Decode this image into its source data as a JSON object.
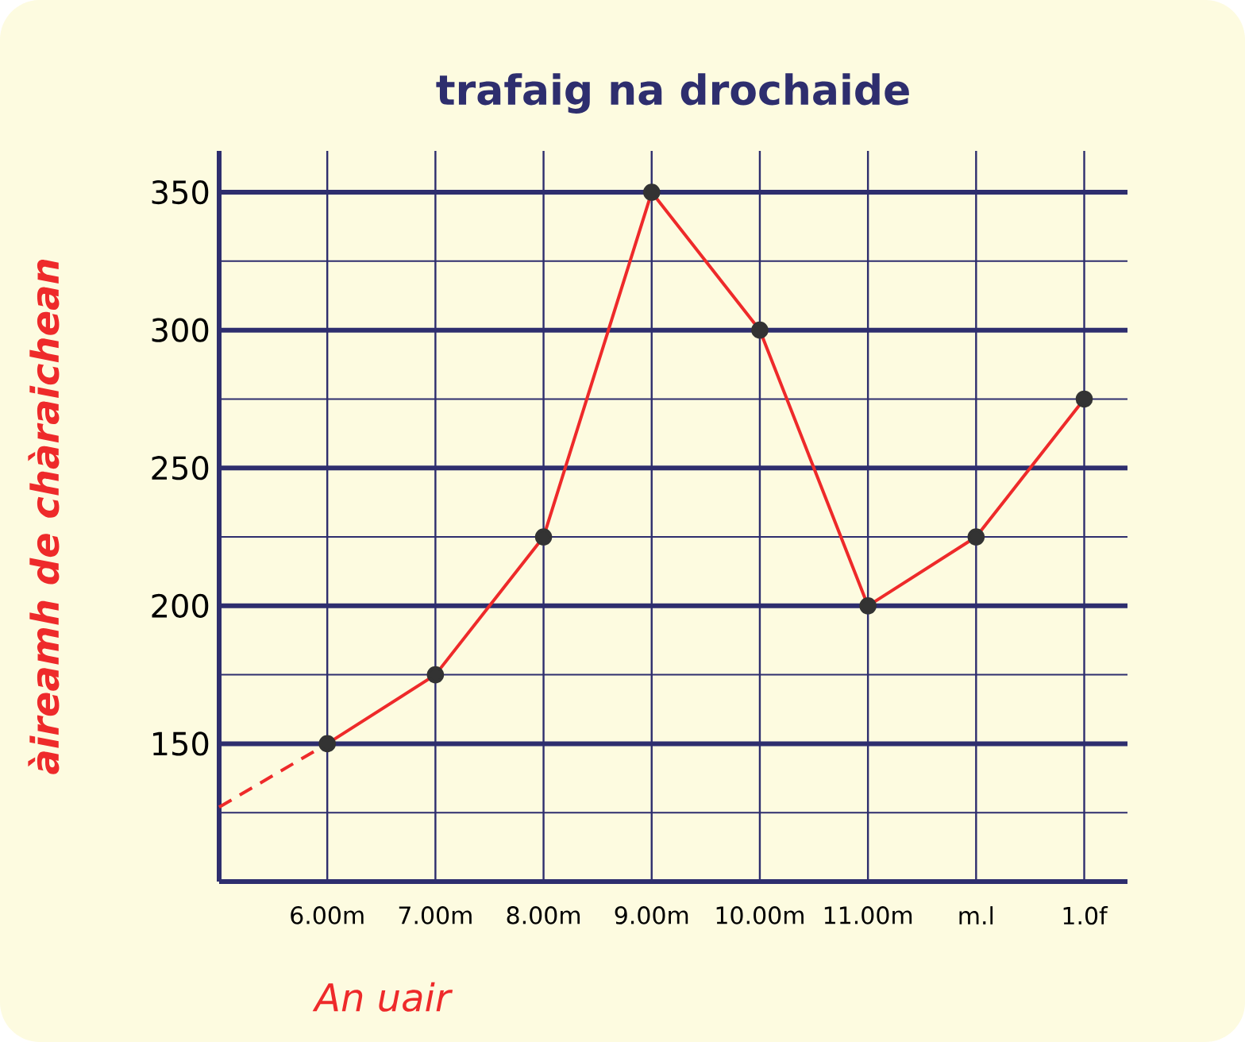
{
  "chart_data": {
    "type": "line",
    "title": "trafaig na drochaide",
    "xlabel": "An uair",
    "ylabel": "àireamh de chàraichean",
    "categories": [
      null,
      "6.00m",
      "7.00m",
      "8.00m",
      "9.00m",
      "10.00m",
      "11.00m",
      "m.l",
      "1.0f"
    ],
    "series": [
      {
        "color": "#ee2a2a",
        "values": [
          null,
          150,
          175,
          225,
          350,
          300,
          200,
          225,
          275
        ],
        "marker": "circle",
        "line_style": "solid"
      },
      {
        "color": "#ee2a2a",
        "values": [
          127,
          150,
          null,
          null,
          null,
          null,
          null,
          null,
          null
        ],
        "marker": "none",
        "line_style": "dashed"
      }
    ],
    "ylim": [
      100,
      365
    ],
    "yticks": [
      {
        "value": 125,
        "label": null
      },
      150,
      {
        "value": 175,
        "label": null
      },
      200,
      {
        "value": 225,
        "label": null
      },
      250,
      {
        "value": 275,
        "label": null
      },
      300,
      {
        "value": 325,
        "label": null
      },
      350
    ],
    "grid": true
  }
}
